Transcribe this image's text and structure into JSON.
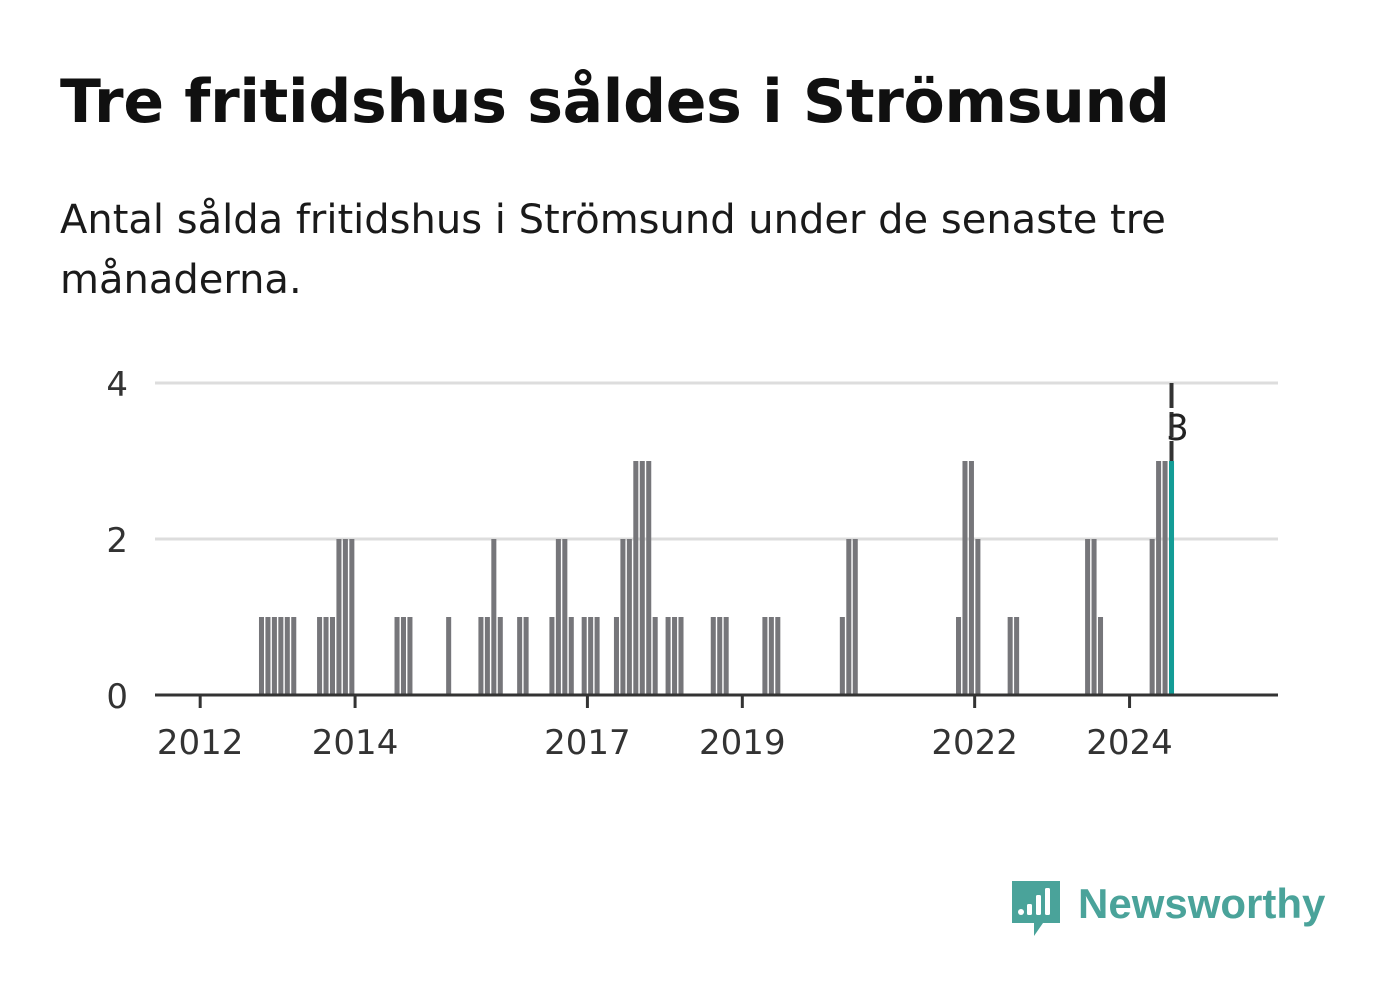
{
  "title": "Tre fritidshus såldes i Strömsund",
  "subtitle": "Antal sålda fritidshus i Strömsund under de senaste tre månaderna.",
  "brand": {
    "name": "Newsworthy",
    "color": "#4aa39a"
  },
  "colors": {
    "bar": "#76767a",
    "highlight": "#139c96",
    "grid": "#dddddd",
    "axis": "#333333"
  },
  "chart_data": {
    "type": "bar",
    "title": "Tre fritidshus såldes i Strömsund",
    "subtitle": "Antal sålda fritidshus i Strömsund under de senaste tre månaderna.",
    "xlabel": "",
    "ylabel": "",
    "ylim": [
      0,
      4
    ],
    "yticks": [
      0,
      2,
      4
    ],
    "xlim": [
      "2011-06",
      "2025-12"
    ],
    "xticks": [
      "2012",
      "2014",
      "2017",
      "2019",
      "2022",
      "2024"
    ],
    "grid": true,
    "annotation": {
      "x": "2024-07",
      "label": "3"
    },
    "highlight": "2024-07",
    "x": [
      "2012-10",
      "2012-11",
      "2012-12",
      "2013-01",
      "2013-02",
      "2013-03",
      "2013-07",
      "2013-08",
      "2013-09",
      "2013-10",
      "2013-11",
      "2013-12",
      "2014-07",
      "2014-08",
      "2014-09",
      "2015-03",
      "2015-08",
      "2015-09",
      "2015-10",
      "2015-11",
      "2016-02",
      "2016-03",
      "2016-07",
      "2016-08",
      "2016-09",
      "2016-10",
      "2016-12",
      "2017-01",
      "2017-02",
      "2017-05",
      "2017-06",
      "2017-07",
      "2017-08",
      "2017-09",
      "2017-10",
      "2017-11",
      "2018-01",
      "2018-02",
      "2018-03",
      "2018-08",
      "2018-09",
      "2018-10",
      "2019-04",
      "2019-05",
      "2019-06",
      "2020-04",
      "2020-05",
      "2020-06",
      "2021-10",
      "2021-11",
      "2021-12",
      "2022-01",
      "2022-06",
      "2022-07",
      "2023-06",
      "2023-07",
      "2023-08",
      "2024-04",
      "2024-05",
      "2024-06",
      "2024-07"
    ],
    "values": [
      1,
      1,
      1,
      1,
      1,
      1,
      1,
      1,
      1,
      2,
      2,
      2,
      1,
      1,
      1,
      1,
      1,
      1,
      2,
      1,
      1,
      1,
      1,
      2,
      2,
      1,
      1,
      1,
      1,
      1,
      2,
      2,
      3,
      3,
      3,
      1,
      1,
      1,
      1,
      1,
      1,
      1,
      1,
      1,
      1,
      1,
      2,
      2,
      1,
      3,
      3,
      2,
      1,
      1,
      2,
      2,
      1,
      2,
      3,
      3,
      3
    ]
  }
}
